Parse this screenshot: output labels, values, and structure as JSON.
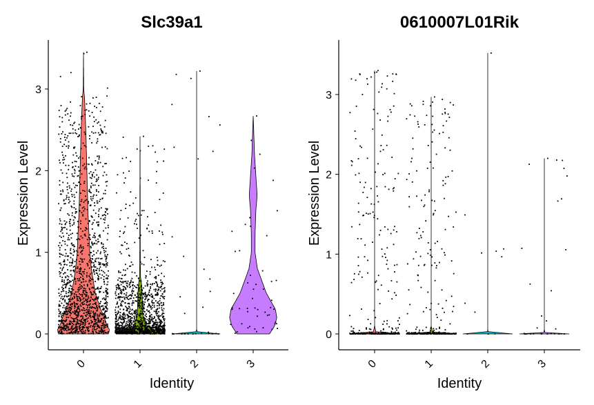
{
  "chart_data": [
    {
      "type": "violin",
      "title": "Slc39a1",
      "xlabel": "Identity",
      "ylabel": "Expression Level",
      "categories": [
        "0",
        "1",
        "2",
        "3"
      ],
      "yticks": [
        0,
        1,
        2,
        3
      ],
      "ylim": [
        -0.15,
        3.6
      ],
      "grid": false,
      "legend": "none",
      "series": [
        {
          "category": "0",
          "color": "#F8766D",
          "max": 3.45,
          "n_points": 1500,
          "density": [
            [
              0.0,
              0.95
            ],
            [
              0.05,
              1.0
            ],
            [
              0.1,
              0.9
            ],
            [
              0.2,
              0.8
            ],
            [
              0.3,
              0.66
            ],
            [
              0.5,
              0.45
            ],
            [
              0.8,
              0.3
            ],
            [
              1.0,
              0.24
            ],
            [
              1.5,
              0.17
            ],
            [
              2.0,
              0.13
            ],
            [
              2.5,
              0.09
            ],
            [
              2.9,
              0.04
            ],
            [
              3.0,
              0.01
            ],
            [
              3.45,
              0.0
            ]
          ]
        },
        {
          "category": "1",
          "color": "#7CAE00",
          "max": 2.42,
          "n_points": 1400,
          "density": [
            [
              0.0,
              0.9
            ],
            [
              0.05,
              0.55
            ],
            [
              0.1,
              0.25
            ],
            [
              0.2,
              0.13
            ],
            [
              0.3,
              0.1
            ],
            [
              0.5,
              0.08
            ],
            [
              0.6,
              0.06
            ],
            [
              0.7,
              0.02
            ],
            [
              0.9,
              0.01
            ],
            [
              2.42,
              0.0
            ]
          ]
        },
        {
          "category": "2",
          "color": "#00BFC4",
          "max": 3.22,
          "n_points": 30,
          "density": [
            [
              0.0,
              0.9
            ],
            [
              0.01,
              0.05
            ],
            [
              0.05,
              0.0
            ],
            [
              3.22,
              0.0
            ]
          ]
        },
        {
          "category": "3",
          "color": "#C77CFF",
          "max": 2.67,
          "n_points": 50,
          "density": [
            [
              0.0,
              0.62
            ],
            [
              0.1,
              0.82
            ],
            [
              0.2,
              0.9
            ],
            [
              0.3,
              0.85
            ],
            [
              0.5,
              0.5
            ],
            [
              0.8,
              0.16
            ],
            [
              1.0,
              0.07
            ],
            [
              1.2,
              0.07
            ],
            [
              1.5,
              0.1
            ],
            [
              1.7,
              0.15
            ],
            [
              2.0,
              0.09
            ],
            [
              2.2,
              0.05
            ],
            [
              2.4,
              0.03
            ],
            [
              2.67,
              0.0
            ]
          ]
        }
      ]
    },
    {
      "type": "violin",
      "title": "0610007L01Rik",
      "xlabel": "Identity",
      "ylabel": "Expression Level",
      "categories": [
        "0",
        "1",
        "2",
        "3"
      ],
      "yticks": [
        0,
        1,
        2,
        3
      ],
      "ylim": [
        -0.15,
        3.6
      ],
      "grid": false,
      "legend": "none",
      "series": [
        {
          "category": "0",
          "color": "#F8766D",
          "max": 3.3,
          "n_points": 330,
          "density": [
            [
              0.0,
              0.95
            ],
            [
              0.02,
              0.05
            ],
            [
              0.1,
              0.0
            ],
            [
              3.3,
              0.0
            ]
          ]
        },
        {
          "category": "1",
          "color": "#7CAE00",
          "max": 2.97,
          "n_points": 330,
          "density": [
            [
              0.0,
              0.95
            ],
            [
              0.02,
              0.05
            ],
            [
              0.1,
              0.0
            ],
            [
              2.97,
              0.0
            ]
          ]
        },
        {
          "category": "2",
          "color": "#00BFC4",
          "max": 3.52,
          "n_points": 10,
          "density": [
            [
              0.0,
              0.95
            ],
            [
              0.01,
              0.02
            ],
            [
              0.05,
              0.0
            ],
            [
              3.52,
              0.0
            ]
          ]
        },
        {
          "category": "3",
          "color": "#C77CFF",
          "max": 2.2,
          "n_points": 30,
          "density": [
            [
              0.0,
              0.95
            ],
            [
              0.01,
              0.03
            ],
            [
              0.05,
              0.0
            ],
            [
              2.2,
              0.0
            ]
          ]
        }
      ]
    }
  ]
}
